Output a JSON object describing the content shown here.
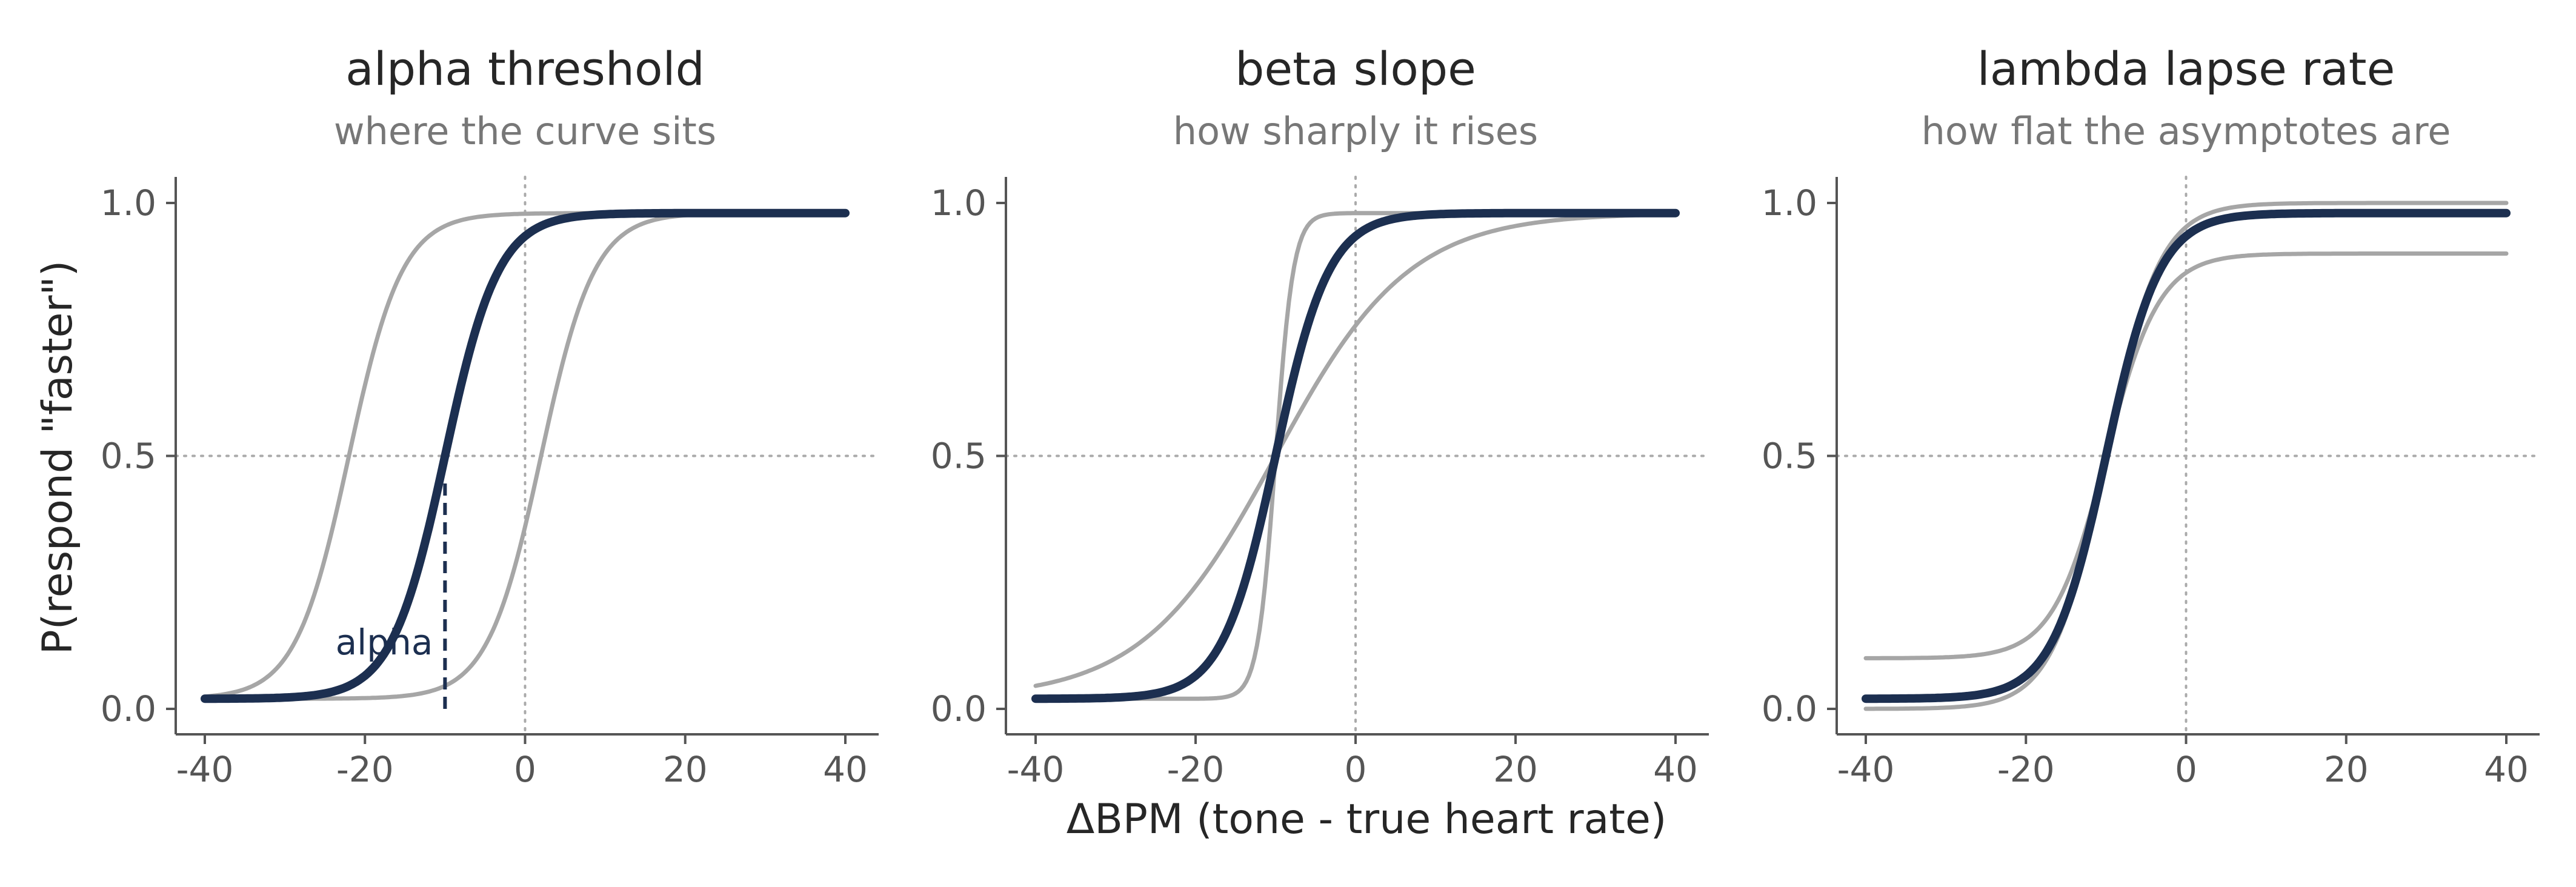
{
  "figure": {
    "ylabel": "P(respond \"faster\")",
    "xlabel": "ΔBPM (tone - true heart rate)"
  },
  "colors": {
    "highlight": "#1c2f50",
    "variant": "#a6a6a6",
    "reference": "#aaaaaa",
    "axis": "#555555"
  },
  "chart_data": [
    {
      "type": "line",
      "title": "alpha  threshold",
      "subtitle": "where the curve sits",
      "xlim": [
        -40,
        40
      ],
      "ylim": [
        0,
        1
      ],
      "xticks": [
        -40,
        -20,
        0,
        20,
        40
      ],
      "xtick_labels": [
        "-40",
        "-20",
        "0",
        "20",
        "40"
      ],
      "yticks": [
        0,
        0.5,
        1
      ],
      "ytick_labels": [
        "0.0",
        "0.5",
        "1.0"
      ],
      "reference_lines": {
        "x": 0,
        "y": 0.5,
        "style": "dotted"
      },
      "curve_model": "logistic: y = gamma + (1 - gamma - lambda) / (1 + exp(-beta * (x - alpha)))",
      "series": [
        {
          "role": "variant",
          "alpha": -22,
          "beta": 0.3,
          "gamma": 0.02,
          "lambda": 0.02
        },
        {
          "role": "variant",
          "alpha": 2,
          "beta": 0.3,
          "gamma": 0.02,
          "lambda": 0.02
        },
        {
          "role": "highlight",
          "alpha": -10,
          "beta": 0.3,
          "gamma": 0.02,
          "lambda": 0.02
        }
      ],
      "annotation": {
        "text": "alpha",
        "x": -10,
        "y_from": 0,
        "y_to": 0.45
      }
    },
    {
      "type": "line",
      "title": "beta  slope",
      "subtitle": "how sharply it rises",
      "xlim": [
        -40,
        40
      ],
      "ylim": [
        0,
        1
      ],
      "xticks": [
        -40,
        -20,
        0,
        20,
        40
      ],
      "xtick_labels": [
        "-40",
        "-20",
        "0",
        "20",
        "40"
      ],
      "yticks": [
        0,
        0.5,
        1
      ],
      "ytick_labels": [
        "0.0",
        "0.5",
        "1.0"
      ],
      "reference_lines": {
        "x": 0,
        "y": 0.5,
        "style": "dotted"
      },
      "curve_model": "logistic: y = gamma + (1 - gamma - lambda) / (1 + exp(-beta * (x - alpha)))",
      "series": [
        {
          "role": "variant",
          "alpha": -10,
          "beta": 0.9,
          "gamma": 0.02,
          "lambda": 0.02
        },
        {
          "role": "variant",
          "alpha": -10,
          "beta": 0.12,
          "gamma": 0.02,
          "lambda": 0.02
        },
        {
          "role": "highlight",
          "alpha": -10,
          "beta": 0.3,
          "gamma": 0.02,
          "lambda": 0.02
        }
      ]
    },
    {
      "type": "line",
      "title": "lambda  lapse rate",
      "subtitle": "how flat the asymptotes are",
      "xlim": [
        -40,
        40
      ],
      "ylim": [
        0,
        1
      ],
      "xticks": [
        -40,
        -20,
        0,
        20,
        40
      ],
      "xtick_labels": [
        "-40",
        "-20",
        "0",
        "20",
        "40"
      ],
      "yticks": [
        0,
        0.5,
        1
      ],
      "ytick_labels": [
        "0.0",
        "0.5",
        "1.0"
      ],
      "reference_lines": {
        "x": 0,
        "y": 0.5,
        "style": "dotted"
      },
      "curve_model": "logistic: y = gamma + (1 - gamma - lambda) / (1 + exp(-beta * (x - alpha)))",
      "series": [
        {
          "role": "variant",
          "alpha": -10,
          "beta": 0.3,
          "gamma": 0.0,
          "lambda": 0.0
        },
        {
          "role": "variant",
          "alpha": -10,
          "beta": 0.3,
          "gamma": 0.1,
          "lambda": 0.1
        },
        {
          "role": "highlight",
          "alpha": -10,
          "beta": 0.3,
          "gamma": 0.02,
          "lambda": 0.02
        }
      ]
    }
  ]
}
